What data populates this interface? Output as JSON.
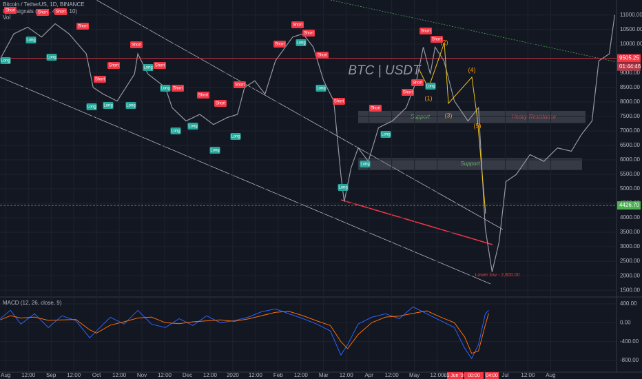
{
  "chart_data": [
    {
      "type": "line",
      "title": "Bitcoin / TetherUS, 1D, BINANCE",
      "indicators": [
        "QQE signals (14, 5, 4.238, 10)",
        "Vol"
      ],
      "color": "#9598a1",
      "grid": true,
      "x": [
        -0.2,
        0.36,
        0.97,
        1.58,
        2.18,
        2.79,
        3.55,
        3.85,
        4.3,
        4.91,
        5.67,
        5.82,
        6.27,
        7.03,
        7.33,
        7.94,
        8.55,
        9.15,
        9.76,
        10.21,
        10.52,
        10.97,
        11.42,
        11.88,
        12.64,
        13.09,
        13.55,
        14.0,
        14.45,
        14.76,
        14.91,
        15.21,
        15.52,
        15.97,
        16.42,
        17.03,
        17.64,
        18.09,
        18.39,
        18.7,
        18.91,
        19.3,
        19.76,
        20.36,
        20.82,
        21.12,
        21.42,
        21.73,
        22.03,
        22.48,
        23.09,
        23.7,
        24.3,
        24.91,
        25.36,
        25.82,
        26.12,
        26.58,
        26.82
      ],
      "values": [
        9540,
        10350,
        10580,
        10240,
        10700,
        10350,
        9660,
        8500,
        8270,
        8030,
        8960,
        9660,
        8960,
        8500,
        7800,
        7340,
        7570,
        7220,
        7460,
        7570,
        8500,
        8730,
        8270,
        9420,
        10240,
        10350,
        9890,
        8730,
        8030,
        5490,
        4560,
        5720,
        6410,
        5950,
        7110,
        7340,
        7800,
        8730,
        9890,
        8960,
        9890,
        9420,
        8030,
        7340,
        7800,
        3630,
        2130,
        3170,
        5250,
        5490,
        6180,
        5950,
        6410,
        6300,
        6880,
        7340,
        9420,
        9660,
        11000
      ],
      "xlim": [
        -0.25,
        26.9
      ],
      "xticks": [
        {
          "value": 0,
          "label": "Aug"
        },
        {
          "value": 1,
          "label": "12:00"
        },
        {
          "value": 2,
          "label": "Sep"
        },
        {
          "value": 3,
          "label": "12:00"
        },
        {
          "value": 4,
          "label": "Oct"
        },
        {
          "value": 5,
          "label": "12:00"
        },
        {
          "value": 6,
          "label": "Nov"
        },
        {
          "value": 7,
          "label": "12:00"
        },
        {
          "value": 8,
          "label": "Dec"
        },
        {
          "value": 9,
          "label": "12:00"
        },
        {
          "value": 10,
          "label": "2020"
        },
        {
          "value": 11,
          "label": "12:00"
        },
        {
          "value": 12,
          "label": "Feb"
        },
        {
          "value": 13,
          "label": "12:00"
        },
        {
          "value": 14,
          "label": "Mar"
        },
        {
          "value": 15,
          "label": "12:00"
        },
        {
          "value": 16,
          "label": "Apr"
        },
        {
          "value": 17,
          "label": "12:00"
        },
        {
          "value": 18,
          "label": "May"
        },
        {
          "value": 19,
          "label": "12:00"
        },
        {
          "value": 22,
          "label": "Jul"
        },
        {
          "value": 23,
          "label": "12:00"
        },
        {
          "value": 24,
          "label": "Aug"
        }
      ],
      "range_labels": [
        "01 Jun '20",
        "00:00",
        "04:00"
      ],
      "ylim": [
        1290,
        11518
      ],
      "yticks": [
        {
          "value": 11000,
          "label": "11000.00"
        },
        {
          "value": 10500,
          "label": "10500.00"
        },
        {
          "value": 10000,
          "label": "10000.00"
        },
        {
          "value": 9500,
          "label": "9500.00"
        },
        {
          "value": 9000,
          "label": "9000.00"
        },
        {
          "value": 8500,
          "label": "8500.00"
        },
        {
          "value": 8000,
          "label": "8000.00"
        },
        {
          "value": 7500,
          "label": "7500.00"
        },
        {
          "value": 7000,
          "label": "7000.00"
        },
        {
          "value": 6500,
          "label": "6500.00"
        },
        {
          "value": 6000,
          "label": "6000.00"
        },
        {
          "value": 5500,
          "label": "5500.00"
        },
        {
          "value": 5000,
          "label": "5000.00"
        },
        {
          "value": 4500,
          "label": "4500.00"
        },
        {
          "value": 4000,
          "label": "4000.00"
        },
        {
          "value": 3500,
          "label": "3500.00"
        },
        {
          "value": 3000,
          "label": "3000.00"
        },
        {
          "value": 2500,
          "label": "2500.00"
        },
        {
          "value": 2000,
          "label": "2000.00"
        },
        {
          "value": 1500,
          "label": "1500.00"
        }
      ],
      "hlines": [
        {
          "value": 9505.25,
          "label": "9505.25",
          "color": "#f23645"
        },
        {
          "value": 4426.7,
          "label": "4426.70",
          "color": "#4caf50"
        }
      ],
      "countdown": "01:44:46",
      "zones": [
        {
          "label": "Support",
          "range": [
            7270,
            7690
          ]
        },
        {
          "label": "Heavy Resistance",
          "range": [
            7270,
            7690
          ]
        },
        {
          "label": "Support",
          "range": [
            5650,
            6060
          ]
        }
      ],
      "annotations": [
        "BTC | USDT",
        "Lower low - 2,800.00"
      ],
      "waves": [
        "(1)",
        "(2)",
        "(3)",
        "(4)",
        "(5)"
      ],
      "signals": [
        "Short",
        "Short",
        "Short",
        "Short",
        "Short",
        "Short",
        "Short",
        "Short",
        "Short",
        "Short",
        "Short",
        "Short",
        "Short",
        "Short",
        "Short",
        "Short",
        "Short",
        "Short",
        "Short",
        "Short",
        "Short",
        "Short",
        "Long",
        "Long",
        "Long",
        "Long",
        "Long",
        "Long",
        "Long",
        "Long",
        "Long",
        "Long",
        "Long",
        "Long",
        "Long",
        "Long",
        "Long",
        "Long",
        "Long",
        "Long"
      ]
    },
    {
      "type": "line",
      "title": "MACD (12, 26, close, 9)",
      "x": [
        -0.24,
        0.21,
        0.67,
        1.27,
        1.88,
        2.48,
        3.09,
        3.7,
        4.0,
        4.61,
        5.21,
        5.82,
        6.42,
        7.03,
        7.64,
        8.24,
        8.85,
        9.45,
        10.06,
        10.67,
        11.27,
        11.88,
        12.48,
        13.09,
        13.7,
        14.3,
        14.76,
        15.06,
        15.52,
        16.12,
        16.73,
        17.33,
        17.94,
        18.55,
        19.15,
        19.76,
        20.21,
        20.52,
        20.82,
        21.12,
        21.27
      ],
      "series": [
        {
          "name": "MACD",
          "color": "#2962ff",
          "values": [
            87,
            262,
            -29,
            189,
            -102,
            146,
            44,
            -320,
            -175,
            116,
            -29,
            262,
            -29,
            -102,
            87,
            -58,
            146,
            0,
            44,
            116,
            233,
            291,
            189,
            87,
            -29,
            -175,
            -684,
            -466,
            -29,
            116,
            189,
            87,
            335,
            189,
            44,
            -102,
            -538,
            -757,
            -466,
            189,
            262
          ]
        },
        {
          "name": "Signal",
          "color": "#ff6d00",
          "values": [
            60,
            150,
            100,
            120,
            50,
            60,
            70,
            -150,
            -220,
            -50,
            20,
            100,
            120,
            0,
            -20,
            20,
            40,
            60,
            30,
            80,
            150,
            220,
            240,
            150,
            40,
            -60,
            -400,
            -550,
            -250,
            0,
            120,
            140,
            200,
            250,
            120,
            0,
            -300,
            -650,
            -600,
            -50,
            200
          ]
        }
      ],
      "xlim": [
        -0.25,
        26.9
      ],
      "ylim": [
        -1047,
        531
      ],
      "yticks": [
        {
          "value": 400,
          "label": "400.00"
        },
        {
          "value": 0,
          "label": "0.00"
        },
        {
          "value": -400,
          "label": "-400.00"
        },
        {
          "value": -800,
          "label": "-800.00"
        }
      ],
      "grid": true
    }
  ]
}
